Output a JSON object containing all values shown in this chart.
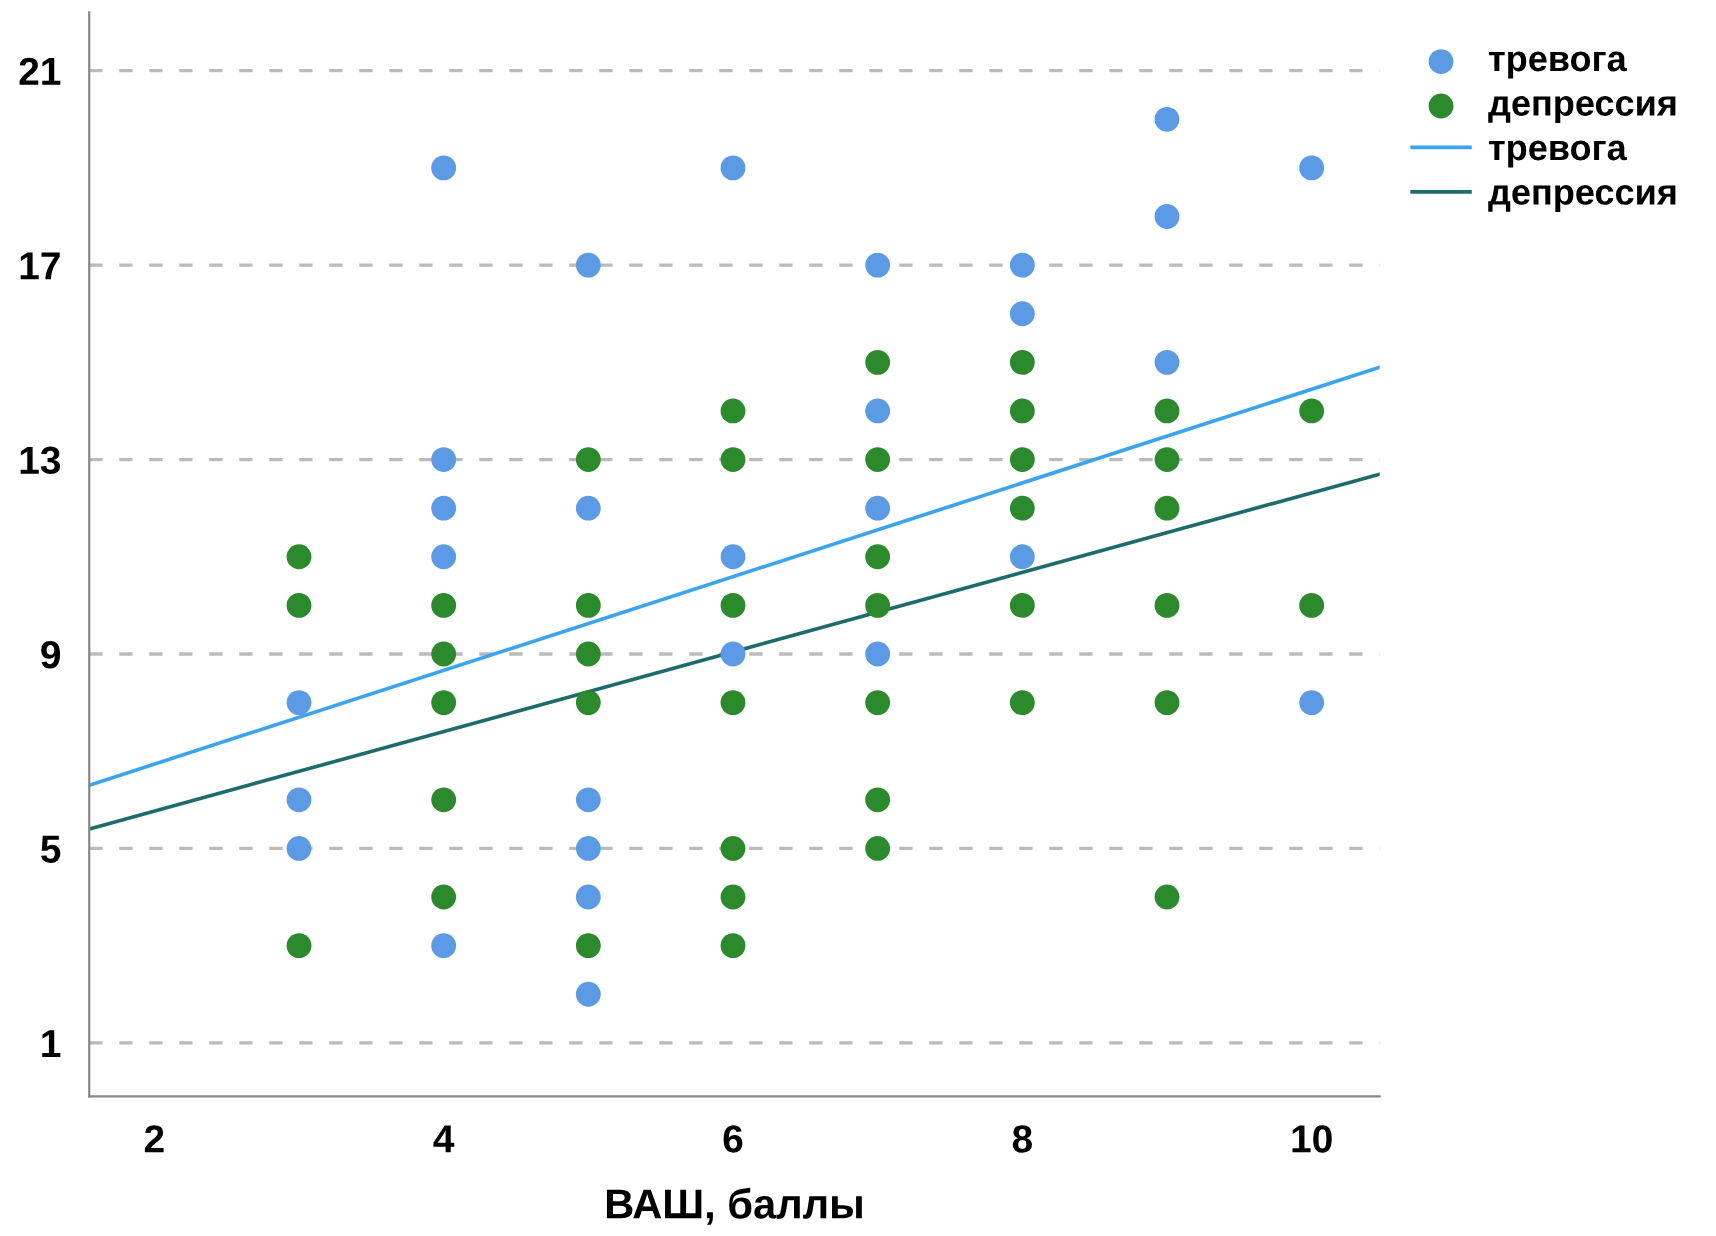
{
  "chart_data": {
    "type": "scatter",
    "xlabel": "ВАШ, баллы",
    "xlim": [
      1.55,
      10.47
    ],
    "xticks": [
      2,
      4,
      6,
      8,
      10
    ],
    "ylim": [
      -0.1,
      22.2
    ],
    "yticks": [
      1,
      5,
      9,
      13,
      17,
      21
    ],
    "grid": "y",
    "legend": "top right",
    "series": [
      {
        "name": "тревога",
        "marker": "circle",
        "color": "#5b9be6",
        "x": [
          3,
          3,
          3,
          4,
          4,
          4,
          4,
          4,
          5,
          5,
          5,
          5,
          5,
          5,
          6,
          6,
          6,
          7,
          7,
          7,
          7,
          8,
          8,
          8,
          9,
          9,
          9,
          10,
          10
        ],
        "values": [
          8,
          6,
          5,
          19,
          13,
          12,
          11,
          3,
          17,
          12,
          6,
          5,
          4,
          2,
          19,
          11,
          9,
          17,
          14,
          12,
          9,
          17,
          16,
          11,
          20,
          18,
          15,
          19,
          8
        ]
      },
      {
        "name": "депрессия",
        "marker": "circle",
        "color": "#2b8a2b",
        "x": [
          3,
          3,
          3,
          4,
          4,
          4,
          4,
          4,
          5,
          5,
          5,
          5,
          5,
          6,
          6,
          6,
          6,
          6,
          6,
          6,
          7,
          7,
          7,
          7,
          7,
          7,
          7,
          8,
          8,
          8,
          8,
          8,
          8,
          9,
          9,
          9,
          9,
          9,
          9,
          10,
          10
        ],
        "values": [
          11,
          10,
          3,
          10,
          9,
          8,
          6,
          4,
          13,
          10,
          9,
          8,
          3,
          14,
          13,
          10,
          8,
          5,
          4,
          3,
          15,
          13,
          11,
          10,
          8,
          6,
          5,
          15,
          14,
          13,
          12,
          10,
          8,
          14,
          13,
          12,
          10,
          8,
          4,
          14,
          10
        ]
      },
      {
        "name": "тревога",
        "type": "line",
        "marker": "none",
        "color": "#3aa4f0",
        "x": [
          1.55,
          10.47
        ],
        "values": [
          6.3,
          14.9
        ]
      },
      {
        "name": "депрессия",
        "type": "line",
        "marker": "none",
        "color": "#1e6b6b",
        "x": [
          1.55,
          10.47
        ],
        "values": [
          5.4,
          12.7
        ]
      }
    ]
  }
}
